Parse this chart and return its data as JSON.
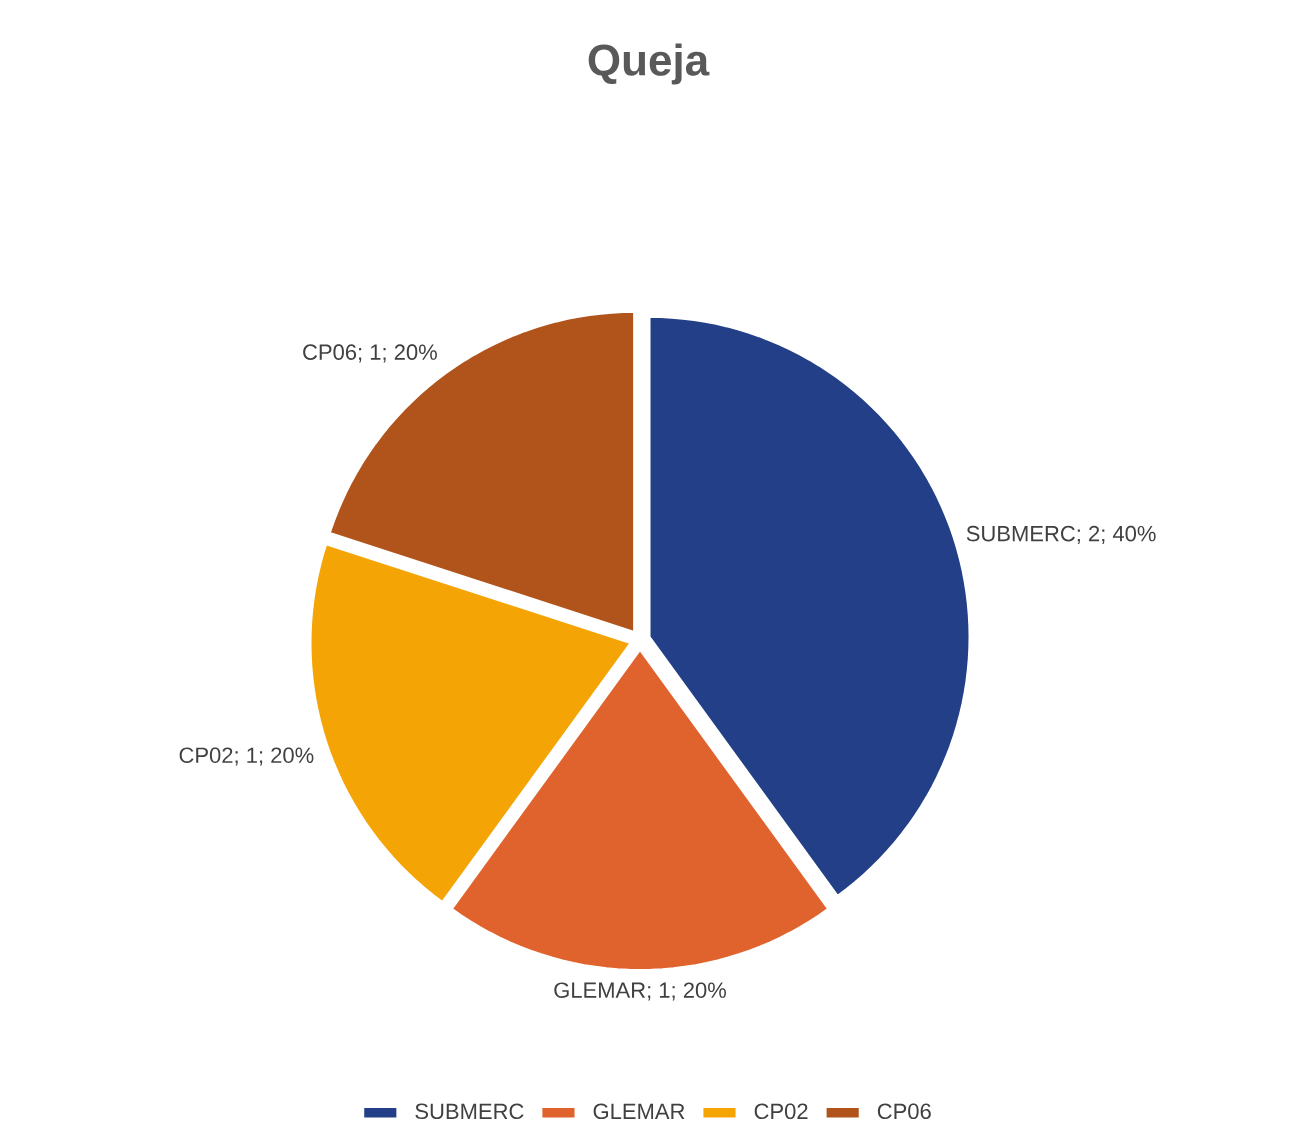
{
  "chart_data": {
    "type": "pie",
    "title": "Queja",
    "categories": [
      "SUBMERC",
      "GLEMAR",
      "CP02",
      "CP06"
    ],
    "values": [
      2,
      1,
      1,
      1
    ],
    "colors": [
      "#223f88",
      "#e0622c",
      "#f5a405",
      "#b0541c"
    ],
    "value_labels": [
      "SUBMERC; 2; 40%",
      "GLEMAR; 1; 20%",
      "CP02; 1; 20%",
      "CP06; 1; 20%"
    ],
    "legend": "bottom"
  }
}
